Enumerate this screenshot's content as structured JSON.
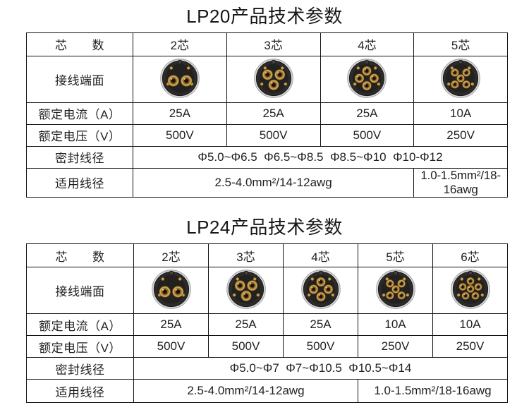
{
  "colors": {
    "border": "#131313",
    "text": "#1f1f1f",
    "connector_body": "#2d2b29",
    "connector_rim": "#dcdcdc",
    "pin_gold": "#caa14e"
  },
  "tables": [
    {
      "id": "lp20",
      "title": "LP20产品技术参数",
      "core_header_label": "芯　　数",
      "columns": [
        "2芯",
        "3芯",
        "4芯",
        "5芯"
      ],
      "pin_counts": [
        2,
        3,
        4,
        5
      ],
      "terminal_row_label": "接线端面",
      "terminal_icon": "connector-face-photo",
      "current_row_label": "额定电流（A）",
      "current_values": [
        "25A",
        "25A",
        "25A",
        "10A"
      ],
      "voltage_row_label": "额定电压（V）",
      "voltage_values": [
        "500V",
        "500V",
        "500V",
        "250V"
      ],
      "seal_row_label": "密封线径",
      "seal_value": "Φ5.0~Φ6.5  Φ6.5~Φ8.5  Φ8.5~Φ10  Φ10-Φ12",
      "wire_row_label": "适用线径",
      "wire_value_main": "2.5-4.0mm²/14-12awg",
      "wire_value_side": "1.0-1.5mm²/18-16awg"
    },
    {
      "id": "lp24",
      "title": "LP24产品技术参数",
      "core_header_label": "芯　　数",
      "columns": [
        "2芯",
        "3芯",
        "4芯",
        "5芯",
        "6芯"
      ],
      "pin_counts": [
        2,
        3,
        4,
        5,
        6
      ],
      "terminal_row_label": "接线端面",
      "terminal_icon": "connector-face-photo",
      "current_row_label": "额定电流（A）",
      "current_values": [
        "25A",
        "25A",
        "25A",
        "10A",
        "10A"
      ],
      "voltage_row_label": "额定电压（V）",
      "voltage_values": [
        "500V",
        "500V",
        "500V",
        "250V",
        "250V"
      ],
      "seal_row_label": "密封线径",
      "seal_value": "Φ5.0~Φ7  Φ7~Φ10.5  Φ10.5~Φ14",
      "wire_row_label": "适用线径",
      "wire_value_main": "2.5-4.0mm²/14-12awg",
      "wire_value_side": "1.0-1.5mm²/18-16awg"
    }
  ]
}
